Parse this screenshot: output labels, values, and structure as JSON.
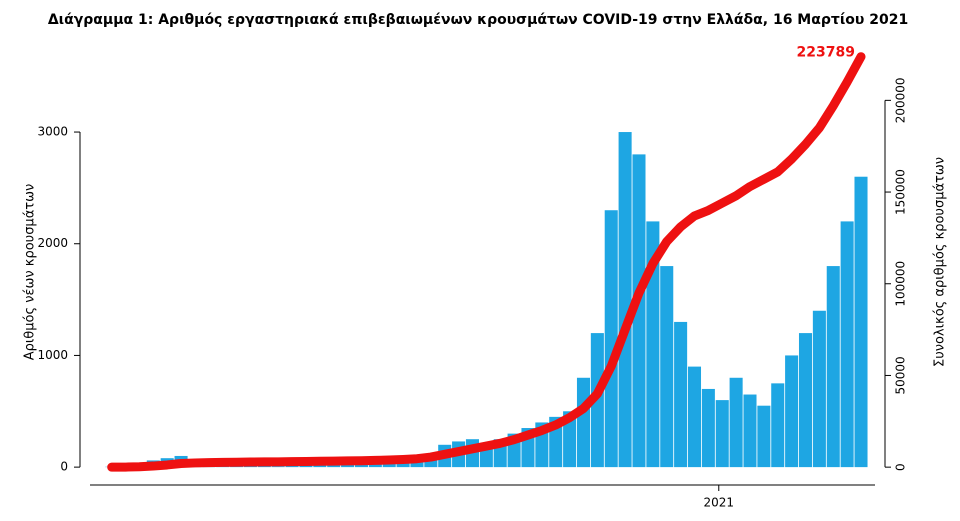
{
  "chart_data": {
    "type": "bar",
    "title": "Διάγραμμα 1: Αριθμός εργαστηριακά επιβεβαιωμένων κρουσμάτων COVID-19 στην Ελλάδα, 16 Μαρτίου 2021",
    "y_label": "Αριθμός νέων κρουσμάτων",
    "y2_label": "Συνολικός αριθμός κρουσμάτων",
    "x": [
      2020.16,
      2020.1792,
      2020.1984,
      2020.2176,
      2020.2368,
      2020.256,
      2020.2752,
      2020.2944,
      2020.3136,
      2020.3328,
      2020.352,
      2020.3712,
      2020.3904,
      2020.4096,
      2020.4288,
      2020.448,
      2020.4672,
      2020.4864,
      2020.5056,
      2020.5248,
      2020.544,
      2020.5632,
      2020.5824,
      2020.6016,
      2020.6208,
      2020.64,
      2020.6592,
      2020.6784,
      2020.6976,
      2020.7168,
      2020.736,
      2020.7552,
      2020.7744,
      2020.7936,
      2020.8128,
      2020.832,
      2020.8512,
      2020.8704,
      2020.8896,
      2020.9088,
      2020.928,
      2020.9472,
      2020.9664,
      2020.9856,
      2021.0048,
      2021.024,
      2021.0432,
      2021.0624,
      2021.0816,
      2021.1008,
      2021.12,
      2021.1392,
      2021.1584,
      2021.1776,
      2021.1968
    ],
    "series": [
      {
        "color": "#1ea6e3",
        "values": [
          3,
          10,
          30,
          60,
          80,
          100,
          60,
          40,
          20,
          15,
          10,
          10,
          8,
          10,
          15,
          20,
          25,
          30,
          20,
          25,
          30,
          40,
          60,
          120,
          200,
          230,
          250,
          200,
          250,
          300,
          350,
          400,
          450,
          500,
          800,
          1200,
          2300,
          3000,
          2800,
          2200,
          1800,
          1300,
          900,
          700,
          600,
          800,
          650,
          550,
          750,
          1000,
          1200,
          1400,
          1800,
          2200,
          2600
        ]
      },
      {
        "color": "#ee1111",
        "axis": "y2",
        "values": [
          3,
          50,
          200,
          600,
          1200,
          2000,
          2300,
          2500,
          2600,
          2700,
          2800,
          2850,
          2900,
          3000,
          3100,
          3200,
          3300,
          3400,
          3500,
          3700,
          3900,
          4200,
          4600,
          5500,
          7000,
          8500,
          10000,
          11500,
          13000,
          15000,
          17500,
          20000,
          23000,
          27000,
          32000,
          40000,
          55000,
          75000,
          95000,
          111000,
          123000,
          131000,
          137000,
          140000,
          144000,
          148000,
          153000,
          157000,
          161000,
          168000,
          176000,
          185000,
          197000,
          210000,
          223789
        ]
      }
    ],
    "xlim": [
      2020.13,
      2021.23
    ],
    "xticks": [
      2021
    ],
    "ylim": [
      -160,
      3645
    ],
    "yticks": [
      0,
      1000,
      2000,
      3000
    ],
    "y2lim": [
      -9730,
      222000
    ],
    "y2ticks": [
      0,
      50000,
      100000,
      150000,
      200000
    ]
  }
}
